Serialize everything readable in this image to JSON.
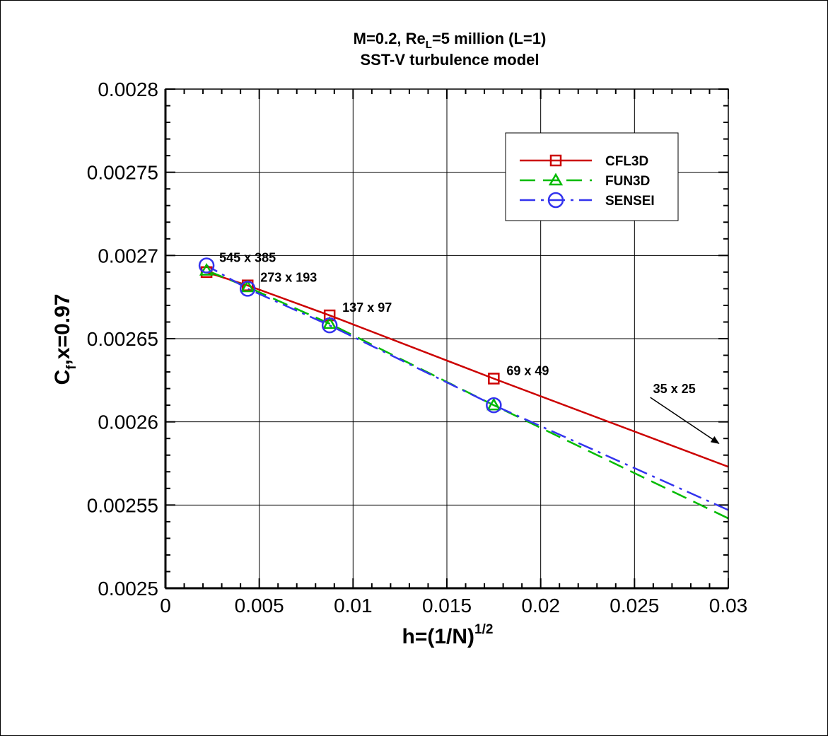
{
  "chart_data": {
    "type": "line",
    "title_line1": {
      "a": "M=0.2, Re",
      "sub": "L",
      "b": "=5 million (L=1)"
    },
    "title_line2": "SST-V turbulence model",
    "xlabel": {
      "base": "h=(1/N)",
      "sup": "1/2"
    },
    "ylabel": {
      "a": "C",
      "sub": "f",
      "b": ",x=0.97"
    },
    "xlim": [
      0,
      0.03
    ],
    "ylim": [
      0.0025,
      0.0028
    ],
    "xticks": [
      0,
      0.005,
      0.01,
      0.015,
      0.02,
      0.025,
      0.03
    ],
    "xtick_labels": [
      "0",
      "0.005",
      "0.01",
      "0.015",
      "0.02",
      "0.025",
      "0.03"
    ],
    "yticks": [
      0.0025,
      0.00255,
      0.0026,
      0.00265,
      0.0027,
      0.00275,
      0.0028
    ],
    "ytick_labels": [
      "0.0025",
      "0.00255",
      "0.0026",
      "0.00265",
      "0.0027",
      "0.00275",
      "0.0028"
    ],
    "grid": true,
    "legend_position": "top-right",
    "series": [
      {
        "name": "CFL3D",
        "color": "#cc0000",
        "dash": "solid",
        "marker": "square",
        "x": [
          0.03,
          0.0175,
          0.00875,
          0.00438,
          0.00219
        ],
        "y": [
          0.002573,
          0.002626,
          0.002664,
          0.002682,
          0.00269
        ],
        "marker_x": [
          0.0175,
          0.00875,
          0.00438,
          0.00219
        ]
      },
      {
        "name": "FUN3D",
        "color": "#00bb00",
        "dash": "dashed",
        "marker": "triangle",
        "x": [
          0.03,
          0.0175,
          0.00875,
          0.00438,
          0.00219
        ],
        "y": [
          0.002542,
          0.00261,
          0.002659,
          0.002681,
          0.002691
        ],
        "marker_x": [
          0.0175,
          0.00875,
          0.00438,
          0.00219
        ]
      },
      {
        "name": "SENSEI",
        "color": "#3333ee",
        "dash": "dashdot",
        "marker": "circle",
        "x": [
          0.03,
          0.0175,
          0.00875,
          0.00438,
          0.00219
        ],
        "y": [
          0.002547,
          0.00261,
          0.002658,
          0.00268,
          0.002694
        ],
        "marker_x": [
          0.0175,
          0.00875,
          0.00438,
          0.00219
        ]
      }
    ],
    "annotations": [
      {
        "text": "545 x 385",
        "x": 0.00219,
        "y": 0.002694
      },
      {
        "text": "273 x 193",
        "x": 0.00438,
        "y": 0.002682
      },
      {
        "text": "137 x 97",
        "x": 0.00875,
        "y": 0.002664
      },
      {
        "text": "69 x 49",
        "x": 0.0175,
        "y": 0.002626
      },
      {
        "text": "35 x 25",
        "x": 0.0272,
        "y": 0.00261,
        "arrow_to": [
          0.0295,
          0.002587
        ]
      }
    ]
  }
}
